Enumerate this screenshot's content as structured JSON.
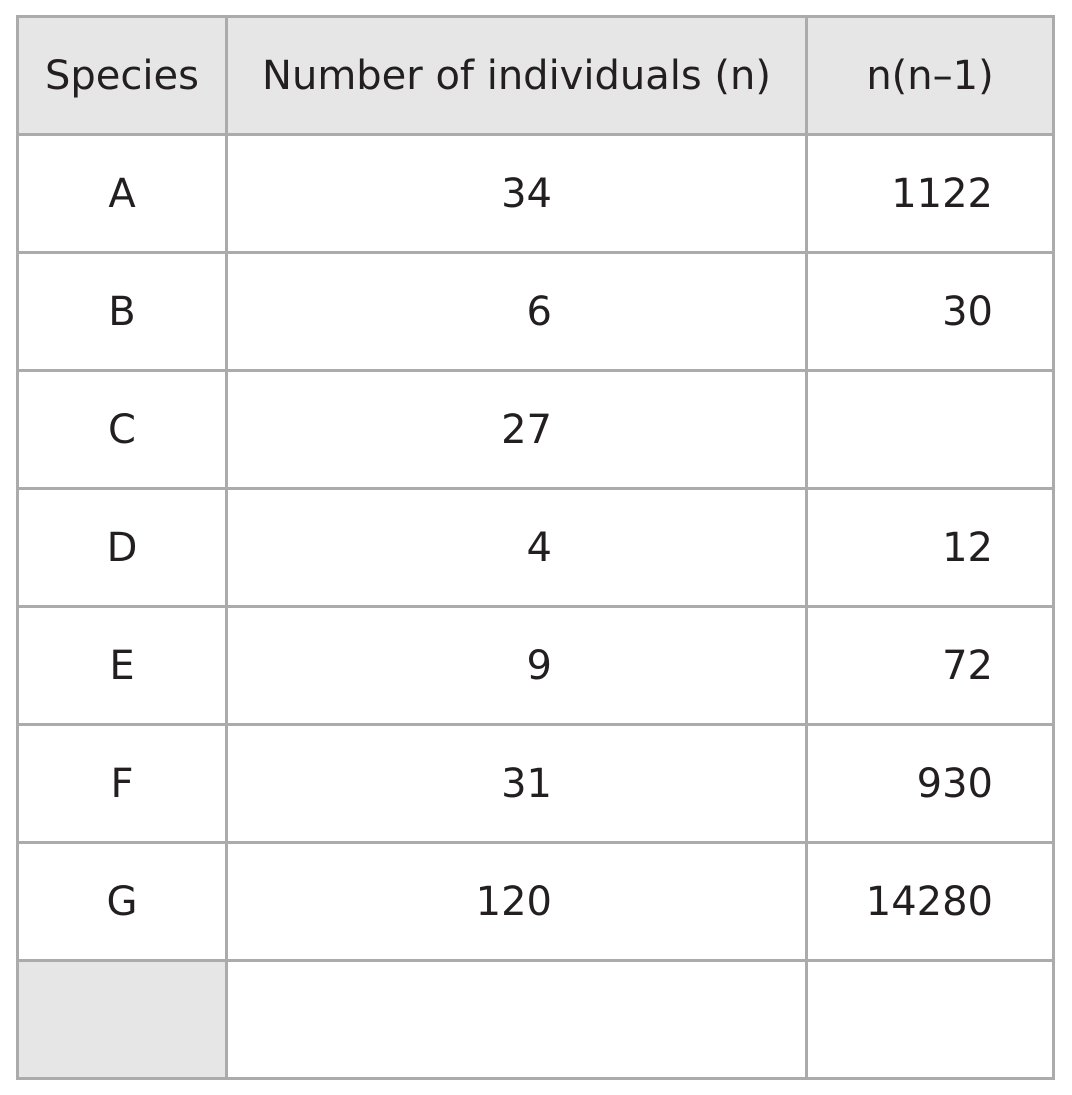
{
  "table": {
    "header": [
      "Species",
      "Number of individuals (n)",
      "n(n–1)"
    ],
    "rows": [
      [
        "A",
        34,
        1122
      ],
      [
        "B",
        6,
        30
      ],
      [
        "C",
        27,
        null
      ],
      [
        "D",
        4,
        12
      ],
      [
        "E",
        9,
        72
      ],
      [
        "F",
        31,
        930
      ],
      [
        "G",
        120,
        14280
      ]
    ]
  }
}
